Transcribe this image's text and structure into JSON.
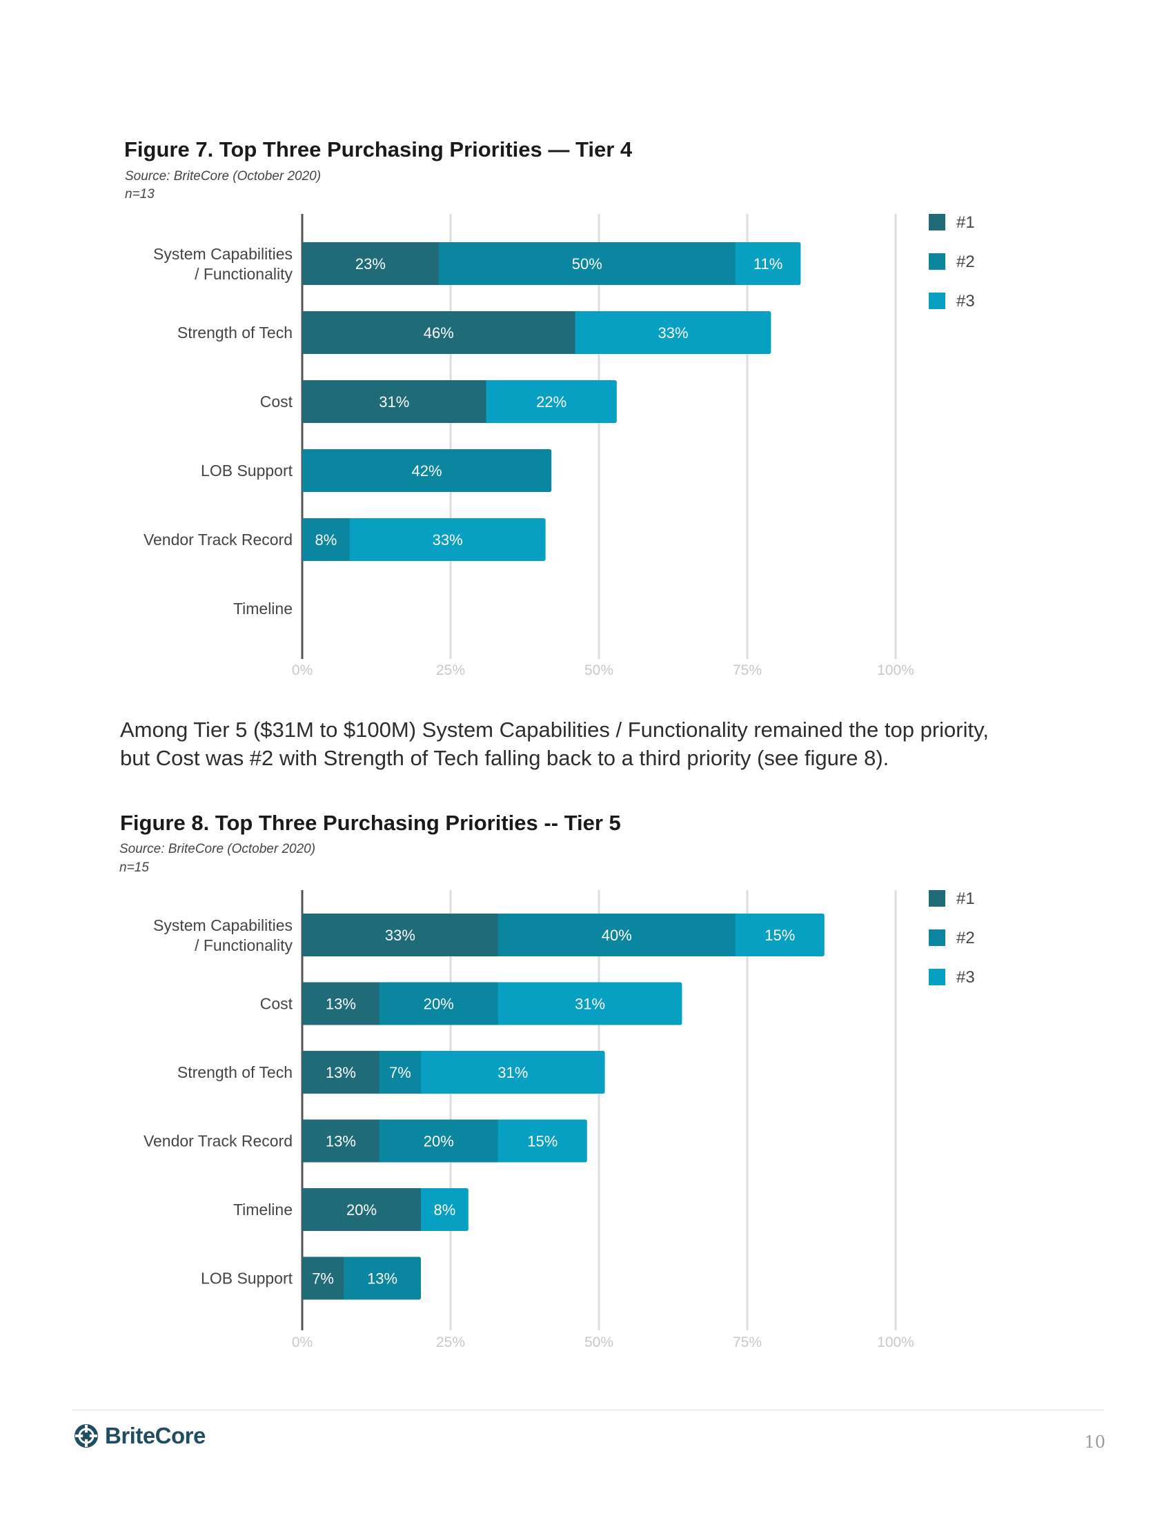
{
  "paragraph": {
    "line1": "Among Tier 5 ($31M to $100M) System Capabilities / Functionality remained the top priority,",
    "line2": "but Cost was #2 with Strength of Tech falling back to a third priority (see figure 8)."
  },
  "footer": {
    "logo_text": "BriteCore",
    "page_number": "10"
  },
  "colors": {
    "rank1": "#1f6b78",
    "rank2": "#0a86a0",
    "rank3": "#07a0c2",
    "axis": "#555555",
    "grid": "#dddddd",
    "tick_label": "#c8c8c8",
    "category_label": "#444444"
  },
  "chart_data": [
    {
      "type": "bar",
      "orientation": "horizontal",
      "stacked": true,
      "title": "Figure 7. Top Three Purchasing Priorities — Tier 4",
      "source": "Source: BriteCore (October 2020)",
      "n_label": "n=13",
      "categories": [
        [
          "System Capabilities",
          "/ Functionality"
        ],
        [
          "Strength of Tech"
        ],
        [
          "Cost"
        ],
        [
          "LOB Support"
        ],
        [
          "Vendor Track Record"
        ],
        [
          "Timeline"
        ]
      ],
      "series": [
        {
          "name": "#1",
          "values": [
            23,
            46,
            31,
            0,
            0,
            0
          ]
        },
        {
          "name": "#2",
          "values": [
            50,
            0,
            0,
            42,
            8,
            0
          ]
        },
        {
          "name": "#3",
          "values": [
            11,
            33,
            22,
            0,
            33,
            0
          ]
        }
      ],
      "value_suffix": "%",
      "xlim": [
        0,
        100
      ],
      "xticks": [
        "0%",
        "25%",
        "50%",
        "75%",
        "100%"
      ],
      "grid": true,
      "legend_position": "right"
    },
    {
      "type": "bar",
      "orientation": "horizontal",
      "stacked": true,
      "title": "Figure 8. Top Three Purchasing Priorities -- Tier 5",
      "source": "Source: BriteCore (October 2020)",
      "n_label": "n=15",
      "categories": [
        [
          "System Capabilities",
          "/ Functionality"
        ],
        [
          "Cost"
        ],
        [
          "Strength of Tech"
        ],
        [
          "Vendor Track Record"
        ],
        [
          "Timeline"
        ],
        [
          "LOB Support"
        ]
      ],
      "series": [
        {
          "name": "#1",
          "values": [
            33,
            13,
            13,
            13,
            20,
            7
          ]
        },
        {
          "name": "#2",
          "values": [
            40,
            20,
            7,
            20,
            0,
            13
          ]
        },
        {
          "name": "#3",
          "values": [
            15,
            31,
            31,
            15,
            8,
            0
          ]
        }
      ],
      "value_suffix": "%",
      "xlim": [
        0,
        100
      ],
      "xticks": [
        "0%",
        "25%",
        "50%",
        "75%",
        "100%"
      ],
      "grid": true,
      "legend_position": "right"
    }
  ]
}
